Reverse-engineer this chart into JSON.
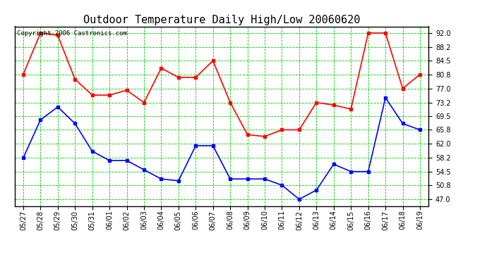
{
  "title": "Outdoor Temperature Daily High/Low 20060620",
  "copyright": "Copyright 2006 Castronics.com",
  "dates": [
    "05/27",
    "05/28",
    "05/29",
    "05/30",
    "05/31",
    "06/01",
    "06/02",
    "06/03",
    "06/04",
    "06/05",
    "06/06",
    "06/07",
    "06/08",
    "06/09",
    "06/10",
    "06/11",
    "06/12",
    "06/13",
    "06/14",
    "06/15",
    "06/16",
    "06/17",
    "06/18",
    "06/19"
  ],
  "high_temps": [
    80.8,
    92.0,
    91.4,
    79.5,
    75.2,
    75.2,
    76.5,
    73.2,
    82.5,
    80.0,
    80.0,
    84.5,
    73.2,
    64.5,
    64.0,
    65.8,
    65.8,
    73.2,
    72.5,
    71.4,
    92.0,
    92.0,
    77.0,
    80.8
  ],
  "low_temps": [
    58.2,
    68.5,
    72.0,
    67.5,
    60.0,
    57.5,
    57.5,
    55.0,
    52.5,
    52.0,
    61.5,
    61.5,
    52.5,
    52.5,
    52.5,
    50.8,
    47.0,
    49.5,
    56.5,
    54.5,
    54.5,
    74.5,
    67.5,
    65.8
  ],
  "high_color": "#ff0000",
  "low_color": "#0000ff",
  "background_color": "#ffffff",
  "grid_color": "#00cc00",
  "yticks": [
    47.0,
    50.8,
    54.5,
    58.2,
    62.0,
    65.8,
    69.5,
    73.2,
    77.0,
    80.8,
    84.5,
    88.2,
    92.0
  ],
  "ylim": [
    45.2,
    93.8
  ],
  "marker": "s",
  "markersize": 3,
  "linewidth": 1.2,
  "title_fontsize": 11,
  "tick_fontsize": 7,
  "copyright_fontsize": 6.5
}
